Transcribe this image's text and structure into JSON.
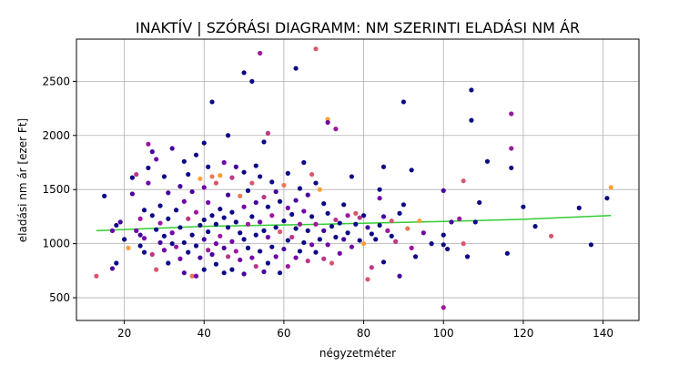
{
  "chart_data": {
    "type": "scatter",
    "title": "INAKTÍV | SZÓRÁSI DIAGRAMM: NM SZERINTI ELADÁSI NM ÁR",
    "xlabel": "négyzetméter",
    "ylabel": "eladási nm ár [ezer Ft]",
    "xlim": [
      8,
      149
    ],
    "ylim": [
      290,
      2890
    ],
    "xticks": [
      20,
      40,
      60,
      80,
      100,
      120,
      140
    ],
    "yticks": [
      500,
      1000,
      1500,
      2000,
      2500
    ],
    "grid": true,
    "colors": {
      "marker_palette": [
        "#0d0887",
        "#46039f",
        "#7201a8",
        "#9c179e",
        "#bd3786",
        "#d8576b",
        "#ed7953",
        "#fb9f3a",
        "#fdca26"
      ],
      "trend": "#33cc33"
    },
    "trend_line": {
      "x": [
        13,
        40,
        70,
        100,
        120,
        142
      ],
      "y": [
        1120,
        1160,
        1180,
        1205,
        1225,
        1260
      ]
    },
    "series": [
      {
        "points": [
          [
            13,
            700,
            5
          ],
          [
            15,
            1440,
            0
          ],
          [
            17,
            770,
            1
          ],
          [
            18,
            820,
            0
          ],
          [
            17,
            1120,
            2
          ],
          [
            18,
            1170,
            0
          ],
          [
            19,
            1200,
            1
          ],
          [
            20,
            1040,
            0
          ],
          [
            21,
            960,
            7
          ],
          [
            22,
            1610,
            0
          ],
          [
            22,
            1460,
            1
          ],
          [
            23,
            1120,
            2
          ],
          [
            23,
            1640,
            4
          ],
          [
            24,
            980,
            0
          ],
          [
            24,
            1080,
            1
          ],
          [
            24,
            1230,
            3
          ],
          [
            25,
            920,
            0
          ],
          [
            25,
            1050,
            2
          ],
          [
            25,
            1310,
            0
          ],
          [
            26,
            1920,
            3
          ],
          [
            26,
            1700,
            0
          ],
          [
            26,
            1560,
            2
          ],
          [
            27,
            1850,
            1
          ],
          [
            27,
            1260,
            0
          ],
          [
            27,
            900,
            4
          ],
          [
            28,
            1780,
            2
          ],
          [
            28,
            1130,
            0
          ],
          [
            28,
            760,
            5
          ],
          [
            29,
            1010,
            1
          ],
          [
            29,
            1350,
            0
          ],
          [
            29,
            1190,
            3
          ],
          [
            30,
            1620,
            0
          ],
          [
            30,
            940,
            2
          ],
          [
            30,
            1070,
            0
          ],
          [
            31,
            1470,
            1
          ],
          [
            31,
            1230,
            0
          ],
          [
            31,
            820,
            0
          ],
          [
            32,
            1880,
            1
          ],
          [
            32,
            1100,
            2
          ],
          [
            32,
            1000,
            0
          ],
          [
            33,
            1310,
            0
          ],
          [
            33,
            970,
            3
          ],
          [
            34,
            1530,
            1
          ],
          [
            34,
            1150,
            0
          ],
          [
            34,
            860,
            2
          ],
          [
            35,
            1760,
            0
          ],
          [
            35,
            1390,
            2
          ],
          [
            35,
            1010,
            0
          ],
          [
            35,
            730,
            1
          ],
          [
            36,
            1640,
            0
          ],
          [
            36,
            1230,
            4
          ],
          [
            36,
            920,
            0
          ],
          [
            37,
            700,
            6
          ],
          [
            37,
            1480,
            1
          ],
          [
            37,
            1080,
            0
          ],
          [
            38,
            1820,
            0
          ],
          [
            38,
            1290,
            3
          ],
          [
            38,
            980,
            0
          ],
          [
            38,
            700,
            2
          ],
          [
            39,
            1600,
            7
          ],
          [
            39,
            1170,
            0
          ],
          [
            39,
            870,
            1
          ],
          [
            40,
            1930,
            0
          ],
          [
            40,
            1520,
            2
          ],
          [
            40,
            1220,
            0
          ],
          [
            40,
            1040,
            1
          ],
          [
            40,
            760,
            0
          ],
          [
            41,
            1710,
            0
          ],
          [
            41,
            1380,
            2
          ],
          [
            41,
            1110,
            0
          ],
          [
            41,
            940,
            3
          ],
          [
            42,
            2310,
            0
          ],
          [
            42,
            1620,
            6
          ],
          [
            42,
            1260,
            0
          ],
          [
            42,
            900,
            1
          ],
          [
            43,
            1560,
            5
          ],
          [
            43,
            1180,
            0
          ],
          [
            43,
            1000,
            2
          ],
          [
            43,
            810,
            0
          ],
          [
            44,
            1630,
            7
          ],
          [
            44,
            1320,
            0
          ],
          [
            44,
            1070,
            3
          ],
          [
            45,
            1750,
            2
          ],
          [
            45,
            1240,
            0
          ],
          [
            45,
            960,
            1
          ],
          [
            45,
            730,
            0
          ],
          [
            46,
            2000,
            0
          ],
          [
            46,
            1450,
            1
          ],
          [
            46,
            1150,
            0
          ],
          [
            46,
            880,
            4
          ],
          [
            47,
            1610,
            4
          ],
          [
            47,
            1290,
            0
          ],
          [
            47,
            1020,
            2
          ],
          [
            47,
            760,
            0
          ],
          [
            48,
            1710,
            1
          ],
          [
            48,
            1200,
            0
          ],
          [
            48,
            930,
            3
          ],
          [
            49,
            1440,
            6
          ],
          [
            49,
            1100,
            0
          ],
          [
            49,
            850,
            2
          ],
          [
            50,
            2580,
            0
          ],
          [
            50,
            1660,
            0
          ],
          [
            50,
            1340,
            2
          ],
          [
            50,
            1040,
            0
          ],
          [
            50,
            720,
            1
          ],
          [
            51,
            1490,
            0
          ],
          [
            51,
            1180,
            3
          ],
          [
            51,
            960,
            0
          ],
          [
            52,
            2500,
            0
          ],
          [
            52,
            1560,
            5
          ],
          [
            52,
            1250,
            0
          ],
          [
            52,
            870,
            2
          ],
          [
            53,
            1720,
            0
          ],
          [
            53,
            1380,
            1
          ],
          [
            53,
            1080,
            0
          ],
          [
            53,
            790,
            4
          ],
          [
            54,
            2760,
            3
          ],
          [
            54,
            1620,
            0
          ],
          [
            54,
            1200,
            2
          ],
          [
            54,
            930,
            0
          ],
          [
            55,
            1940,
            0
          ],
          [
            55,
            1430,
            4
          ],
          [
            55,
            1120,
            0
          ],
          [
            55,
            740,
            1
          ],
          [
            56,
            2020,
            4
          ],
          [
            56,
            1340,
            0
          ],
          [
            56,
            1060,
            2
          ],
          [
            56,
            820,
            0
          ],
          [
            57,
            1570,
            0
          ],
          [
            57,
            1260,
            3
          ],
          [
            57,
            970,
            0
          ],
          [
            58,
            1480,
            1
          ],
          [
            58,
            1150,
            0
          ],
          [
            58,
            880,
            2
          ],
          [
            59,
            1390,
            0
          ],
          [
            59,
            1110,
            5
          ],
          [
            59,
            730,
            0
          ],
          [
            60,
            1540,
            6
          ],
          [
            60,
            1210,
            0
          ],
          [
            60,
            950,
            1
          ],
          [
            61,
            1650,
            0
          ],
          [
            61,
            1330,
            2
          ],
          [
            61,
            1030,
            0
          ],
          [
            61,
            790,
            3
          ],
          [
            62,
            1270,
            0
          ],
          [
            62,
            1060,
            4
          ],
          [
            63,
            2620,
            0
          ],
          [
            63,
            1400,
            1
          ],
          [
            63,
            1140,
            0
          ],
          [
            63,
            870,
            2
          ],
          [
            64,
            1510,
            0
          ],
          [
            64,
            1180,
            3
          ],
          [
            64,
            930,
            0
          ],
          [
            65,
            1750,
            0
          ],
          [
            65,
            1300,
            2
          ],
          [
            65,
            1010,
            0
          ],
          [
            66,
            1450,
            1
          ],
          [
            66,
            1120,
            0
          ],
          [
            66,
            840,
            4
          ],
          [
            67,
            1640,
            5
          ],
          [
            67,
            1250,
            0
          ],
          [
            67,
            990,
            2
          ],
          [
            68,
            2800,
            5
          ],
          [
            68,
            1560,
            0
          ],
          [
            68,
            1180,
            3
          ],
          [
            68,
            920,
            0
          ],
          [
            69,
            1500,
            7
          ],
          [
            69,
            1040,
            0
          ],
          [
            70,
            1370,
            0
          ],
          [
            70,
            1120,
            1
          ],
          [
            70,
            860,
            4
          ],
          [
            71,
            2150,
            7
          ],
          [
            71,
            2120,
            2
          ],
          [
            71,
            1280,
            0
          ],
          [
            71,
            990,
            2
          ],
          [
            72,
            820,
            5
          ],
          [
            72,
            1160,
            0
          ],
          [
            73,
            2060,
            3
          ],
          [
            73,
            1220,
            4
          ],
          [
            73,
            1060,
            0
          ],
          [
            74,
            1190,
            0
          ],
          [
            74,
            910,
            2
          ],
          [
            75,
            1360,
            0
          ],
          [
            75,
            1040,
            1
          ],
          [
            76,
            1260,
            3
          ],
          [
            76,
            1100,
            0
          ],
          [
            77,
            1620,
            0
          ],
          [
            77,
            970,
            2
          ],
          [
            78,
            1280,
            5
          ],
          [
            78,
            1180,
            0
          ],
          [
            79,
            1240,
            4
          ],
          [
            79,
            1030,
            0
          ],
          [
            80,
            1000,
            7
          ],
          [
            80,
            1260,
            0
          ],
          [
            81,
            1150,
            1
          ],
          [
            81,
            670,
            5
          ],
          [
            82,
            1090,
            0
          ],
          [
            82,
            780,
            4
          ],
          [
            83,
            1040,
            0
          ],
          [
            84,
            1500,
            0
          ],
          [
            84,
            1420,
            2
          ],
          [
            84,
            1170,
            0
          ],
          [
            85,
            1710,
            0
          ],
          [
            85,
            1250,
            1
          ],
          [
            85,
            830,
            0
          ],
          [
            86,
            1120,
            3
          ],
          [
            87,
            1070,
            0
          ],
          [
            87,
            1210,
            5
          ],
          [
            88,
            1020,
            4
          ],
          [
            89,
            1280,
            0
          ],
          [
            89,
            700,
            1
          ],
          [
            90,
            2310,
            0
          ],
          [
            90,
            1360,
            0
          ],
          [
            91,
            1140,
            6
          ],
          [
            92,
            1680,
            0
          ],
          [
            92,
            960,
            3
          ],
          [
            93,
            880,
            0
          ],
          [
            94,
            1210,
            7
          ],
          [
            95,
            1100,
            2
          ],
          [
            97,
            1000,
            0
          ],
          [
            100,
            1490,
            1
          ],
          [
            100,
            1080,
            0
          ],
          [
            100,
            990,
            0
          ],
          [
            100,
            410,
            3
          ],
          [
            101,
            950,
            0
          ],
          [
            102,
            1200,
            1
          ],
          [
            104,
            1230,
            3
          ],
          [
            105,
            1580,
            5
          ],
          [
            105,
            1000,
            5
          ],
          [
            106,
            880,
            0
          ],
          [
            107,
            2420,
            0
          ],
          [
            107,
            2140,
            0
          ],
          [
            108,
            1200,
            0
          ],
          [
            109,
            1380,
            0
          ],
          [
            111,
            1760,
            0
          ],
          [
            116,
            910,
            0
          ],
          [
            117,
            2200,
            3
          ],
          [
            117,
            1880,
            3
          ],
          [
            117,
            1700,
            0
          ],
          [
            120,
            1340,
            0
          ],
          [
            123,
            1160,
            0
          ],
          [
            127,
            1070,
            5
          ],
          [
            134,
            1330,
            0
          ],
          [
            137,
            990,
            0
          ],
          [
            141,
            1420,
            0
          ],
          [
            142,
            1520,
            7
          ]
        ]
      }
    ]
  }
}
